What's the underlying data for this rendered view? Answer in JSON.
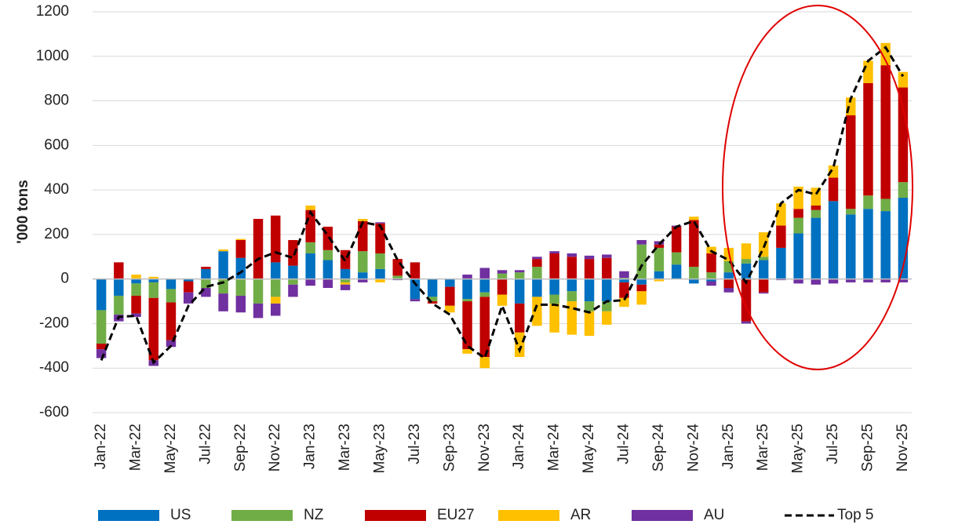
{
  "chart_data": {
    "type": "stacked_bar_line",
    "y_label": "'000 tons",
    "categories": [
      "Jan-22",
      null,
      "Mar-22",
      null,
      "May-22",
      null,
      "Jul-22",
      null,
      "Sep-22",
      null,
      "Nov-22",
      null,
      "Jan-23",
      null,
      "Mar-23",
      null,
      "May-23",
      null,
      "Jul-23",
      null,
      "Sep-23",
      null,
      "Nov-23",
      null,
      "Jan-24",
      null,
      "Mar-24",
      null,
      "May-24",
      null,
      "Jul-24",
      null,
      "Sep-24",
      null,
      "Nov-24",
      null,
      "Jan-25",
      null,
      "Mar-25",
      null,
      "May-25",
      null,
      "Jul-25",
      null,
      "Sep-25",
      null,
      "Nov-25"
    ],
    "series": [
      {
        "name": "US",
        "color": "#0070c0",
        "values": [
          -140,
          -75,
          -20,
          -15,
          -45,
          -10,
          45,
          125,
          95,
          0,
          75,
          60,
          115,
          85,
          45,
          30,
          45,
          0,
          -90,
          -80,
          -35,
          -90,
          -60,
          0,
          -110,
          -80,
          -70,
          -55,
          -100,
          -100,
          -15,
          -25,
          35,
          65,
          -20,
          -10,
          30,
          70,
          85,
          140,
          205,
          275,
          350,
          290,
          315,
          305,
          365
        ]
      },
      {
        "name": "NZ",
        "color": "#70ad47",
        "values": [
          -150,
          -85,
          -55,
          -70,
          -60,
          0,
          -40,
          -65,
          -75,
          -110,
          -80,
          -25,
          50,
          45,
          -15,
          95,
          70,
          15,
          0,
          -20,
          0,
          -10,
          -20,
          25,
          30,
          55,
          -40,
          -45,
          -45,
          -45,
          5,
          155,
          105,
          55,
          55,
          30,
          50,
          20,
          15,
          0,
          70,
          35,
          0,
          25,
          60,
          55,
          70
        ]
      },
      {
        "name": "EU27",
        "color": "#c00000",
        "values": [
          -25,
          75,
          -80,
          -280,
          -170,
          -50,
          10,
          0,
          80,
          270,
          210,
          115,
          145,
          105,
          85,
          135,
          135,
          75,
          75,
          -10,
          -85,
          -215,
          -270,
          -70,
          -130,
          35,
          115,
          100,
          90,
          95,
          -70,
          -30,
          15,
          115,
          210,
          85,
          -40,
          -190,
          -60,
          100,
          40,
          20,
          105,
          420,
          505,
          600,
          425
        ]
      },
      {
        "name": "AR",
        "color": "#ffc000",
        "values": [
          0,
          0,
          20,
          10,
          0,
          0,
          0,
          8,
          5,
          0,
          -30,
          0,
          20,
          0,
          -10,
          10,
          -15,
          0,
          0,
          0,
          -30,
          -20,
          -50,
          -50,
          -110,
          -130,
          -130,
          -150,
          -110,
          -60,
          -40,
          -60,
          -10,
          0,
          15,
          30,
          60,
          70,
          110,
          100,
          100,
          80,
          55,
          80,
          100,
          100,
          70
        ]
      },
      {
        "name": "AU",
        "color": "#7030a0",
        "values": [
          -40,
          -30,
          -15,
          -25,
          -30,
          -50,
          -40,
          -80,
          -75,
          -65,
          -55,
          -55,
          -30,
          -40,
          -25,
          -15,
          5,
          -5,
          -10,
          0,
          0,
          20,
          50,
          15,
          10,
          10,
          10,
          15,
          15,
          15,
          30,
          20,
          15,
          5,
          0,
          -20,
          -20,
          -10,
          -5,
          -5,
          -20,
          -25,
          -20,
          -15,
          -15,
          -15,
          -15
        ]
      },
      {
        "name": "Top 5",
        "color": "#000000",
        "kind": "line",
        "dashed": true,
        "values": [
          -365,
          -170,
          -165,
          -375,
          -300,
          -120,
          -35,
          -15,
          30,
          90,
          120,
          95,
          300,
          195,
          80,
          255,
          240,
          85,
          -20,
          -110,
          -160,
          -300,
          -355,
          -120,
          -320,
          -115,
          -115,
          -130,
          -150,
          -100,
          -95,
          60,
          155,
          235,
          260,
          125,
          85,
          -15,
          140,
          340,
          400,
          380,
          500,
          810,
          980,
          1040,
          910
        ]
      }
    ],
    "ylim": [
      -600,
      1200
    ],
    "yticks": [
      -600,
      -400,
      -200,
      0,
      200,
      400,
      600,
      800,
      1000,
      1200
    ],
    "grid": true
  }
}
